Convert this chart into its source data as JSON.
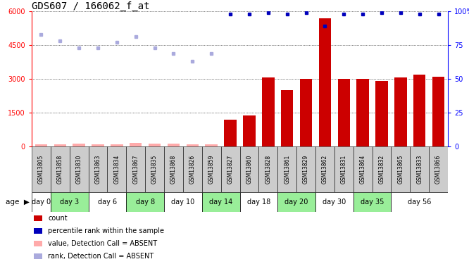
{
  "title": "GDS607 / 166062_f_at",
  "samples": [
    "GSM13805",
    "GSM13858",
    "GSM13830",
    "GSM13863",
    "GSM13834",
    "GSM13867",
    "GSM13835",
    "GSM13868",
    "GSM13826",
    "GSM13859",
    "GSM13827",
    "GSM13860",
    "GSM13828",
    "GSM13861",
    "GSM13829",
    "GSM13862",
    "GSM13831",
    "GSM13864",
    "GSM13832",
    "GSM13865",
    "GSM13833",
    "GSM13866"
  ],
  "age_groups": [
    {
      "label": "day 0",
      "start": 0,
      "end": 1,
      "green": false
    },
    {
      "label": "day 3",
      "start": 1,
      "end": 3,
      "green": true
    },
    {
      "label": "day 6",
      "start": 3,
      "end": 5,
      "green": false
    },
    {
      "label": "day 8",
      "start": 5,
      "end": 7,
      "green": true
    },
    {
      "label": "day 10",
      "start": 7,
      "end": 9,
      "green": false
    },
    {
      "label": "day 14",
      "start": 9,
      "end": 11,
      "green": true
    },
    {
      "label": "day 18",
      "start": 11,
      "end": 13,
      "green": false
    },
    {
      "label": "day 20",
      "start": 13,
      "end": 15,
      "green": true
    },
    {
      "label": "day 30",
      "start": 15,
      "end": 17,
      "green": false
    },
    {
      "label": "day 35",
      "start": 17,
      "end": 19,
      "green": true
    },
    {
      "label": "day 56",
      "start": 19,
      "end": 22,
      "green": false
    }
  ],
  "count_values": [
    80,
    100,
    120,
    80,
    100,
    150,
    120,
    130,
    100,
    100,
    1200,
    1380,
    3050,
    2500,
    3000,
    5700,
    3000,
    3000,
    2900,
    3050,
    3200,
    3100
  ],
  "absent_count": [
    true,
    true,
    true,
    true,
    true,
    true,
    true,
    true,
    true,
    true,
    false,
    false,
    false,
    false,
    false,
    false,
    false,
    false,
    false,
    false,
    false,
    false
  ],
  "percentile_values": [
    83,
    78,
    73,
    73,
    77,
    81,
    73,
    69,
    63,
    69,
    98,
    98,
    99,
    98,
    99,
    89,
    98,
    98,
    99,
    99,
    98,
    98
  ],
  "absent_percentile": [
    true,
    true,
    true,
    true,
    true,
    true,
    true,
    true,
    true,
    true,
    false,
    false,
    false,
    false,
    false,
    false,
    false,
    false,
    false,
    false,
    false,
    false
  ],
  "ylim_left": [
    0,
    6000
  ],
  "ylim_right": [
    0,
    100
  ],
  "yticks_left": [
    0,
    1500,
    3000,
    4500,
    6000
  ],
  "yticks_right": [
    0,
    25,
    50,
    75,
    100
  ],
  "bar_color_present": "#cc0000",
  "bar_color_absent": "#ffaaaa",
  "dot_color_present": "#0000bb",
  "dot_color_absent": "#aaaadd",
  "legend_items": [
    {
      "color": "#cc0000",
      "label": "count"
    },
    {
      "color": "#0000bb",
      "label": "percentile rank within the sample"
    },
    {
      "color": "#ffaaaa",
      "label": "value, Detection Call = ABSENT"
    },
    {
      "color": "#aaaadd",
      "label": "rank, Detection Call = ABSENT"
    }
  ],
  "xlabel_age": "age",
  "background_plot": "#ffffff",
  "background_sample_row": "#cccccc",
  "background_age_green": "#99ee99",
  "background_age_white": "#ffffff",
  "title_fontsize": 10,
  "tick_fontsize": 7,
  "label_fontsize": 8
}
